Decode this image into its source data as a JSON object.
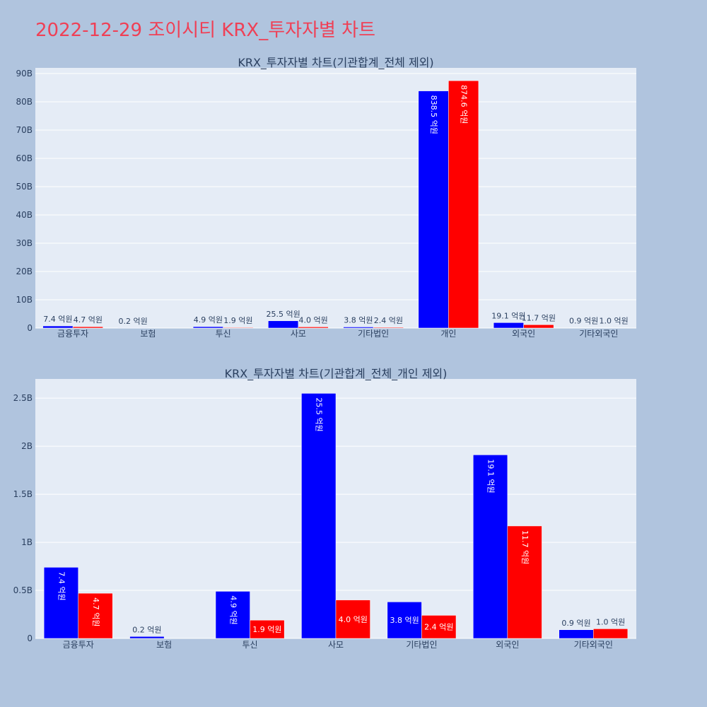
{
  "page": {
    "title": "2022-12-29 조이시티 KRX_투자자별 차트"
  },
  "colors": {
    "series_a": "#0000ff",
    "series_b": "#ff0000",
    "plot_bg": "#e5ecf6",
    "page_bg": "#b0c4de",
    "title": "#ef4056"
  },
  "chart_data": [
    {
      "type": "bar",
      "title": "KRX_투자자별 차트(기관합계_전체 제외)",
      "categories": [
        "금융투자",
        "보험",
        "투신",
        "사모",
        "기타법인",
        "개인",
        "외국인",
        "기타외국인"
      ],
      "y_ticks": [
        0,
        10,
        20,
        30,
        40,
        50,
        60,
        70,
        80,
        90
      ],
      "y_tick_labels": [
        "0",
        "10B",
        "20B",
        "30B",
        "40B",
        "50B",
        "60B",
        "70B",
        "80B",
        "90B"
      ],
      "ylim": [
        0,
        92
      ],
      "series": [
        {
          "color": "#0000ff",
          "values": [
            0.74,
            0.02,
            0.49,
            2.55,
            0.38,
            83.85,
            1.91,
            0.09
          ],
          "labels": [
            "7.4 억원",
            "0.2 억원",
            "4.9 억원",
            "25.5 억원",
            "3.8 억원",
            "838.5 억원",
            "19.1 억원",
            "0.9 억원"
          ]
        },
        {
          "color": "#ff0000",
          "values": [
            0.47,
            null,
            0.19,
            0.4,
            0.24,
            87.46,
            1.17,
            0.1
          ],
          "labels": [
            "4.7 억원",
            "",
            "1.9 억원",
            "4.0 억원",
            "2.4 억원",
            "874.6 억원",
            "11.7 억원",
            "1.0 억원"
          ]
        }
      ]
    },
    {
      "type": "bar",
      "title": "KRX_투자자별 차트(기관합계_전체_개인 제외)",
      "categories": [
        "금융투자",
        "보험",
        "투신",
        "사모",
        "기타법인",
        "외국인",
        "기타외국인"
      ],
      "y_ticks": [
        0,
        0.5,
        1,
        1.5,
        2,
        2.5
      ],
      "y_tick_labels": [
        "0",
        "0.5B",
        "1B",
        "1.5B",
        "2B",
        "2.5B"
      ],
      "ylim": [
        0,
        2.7
      ],
      "series": [
        {
          "color": "#0000ff",
          "values": [
            0.74,
            0.02,
            0.49,
            2.55,
            0.38,
            1.91,
            0.09
          ],
          "labels": [
            "7.4 억원",
            "0.2 억원",
            "4.9 억원",
            "25.5 억원",
            "3.8 억원",
            "19.1 억원",
            "0.9 억원"
          ]
        },
        {
          "color": "#ff0000",
          "values": [
            0.47,
            null,
            0.19,
            0.4,
            0.24,
            1.17,
            0.1
          ],
          "labels": [
            "4.7 억원",
            "",
            "1.9 억원",
            "4.0 억원",
            "2.4 억원",
            "11.7 억원",
            "1.0 억원"
          ]
        }
      ]
    }
  ]
}
